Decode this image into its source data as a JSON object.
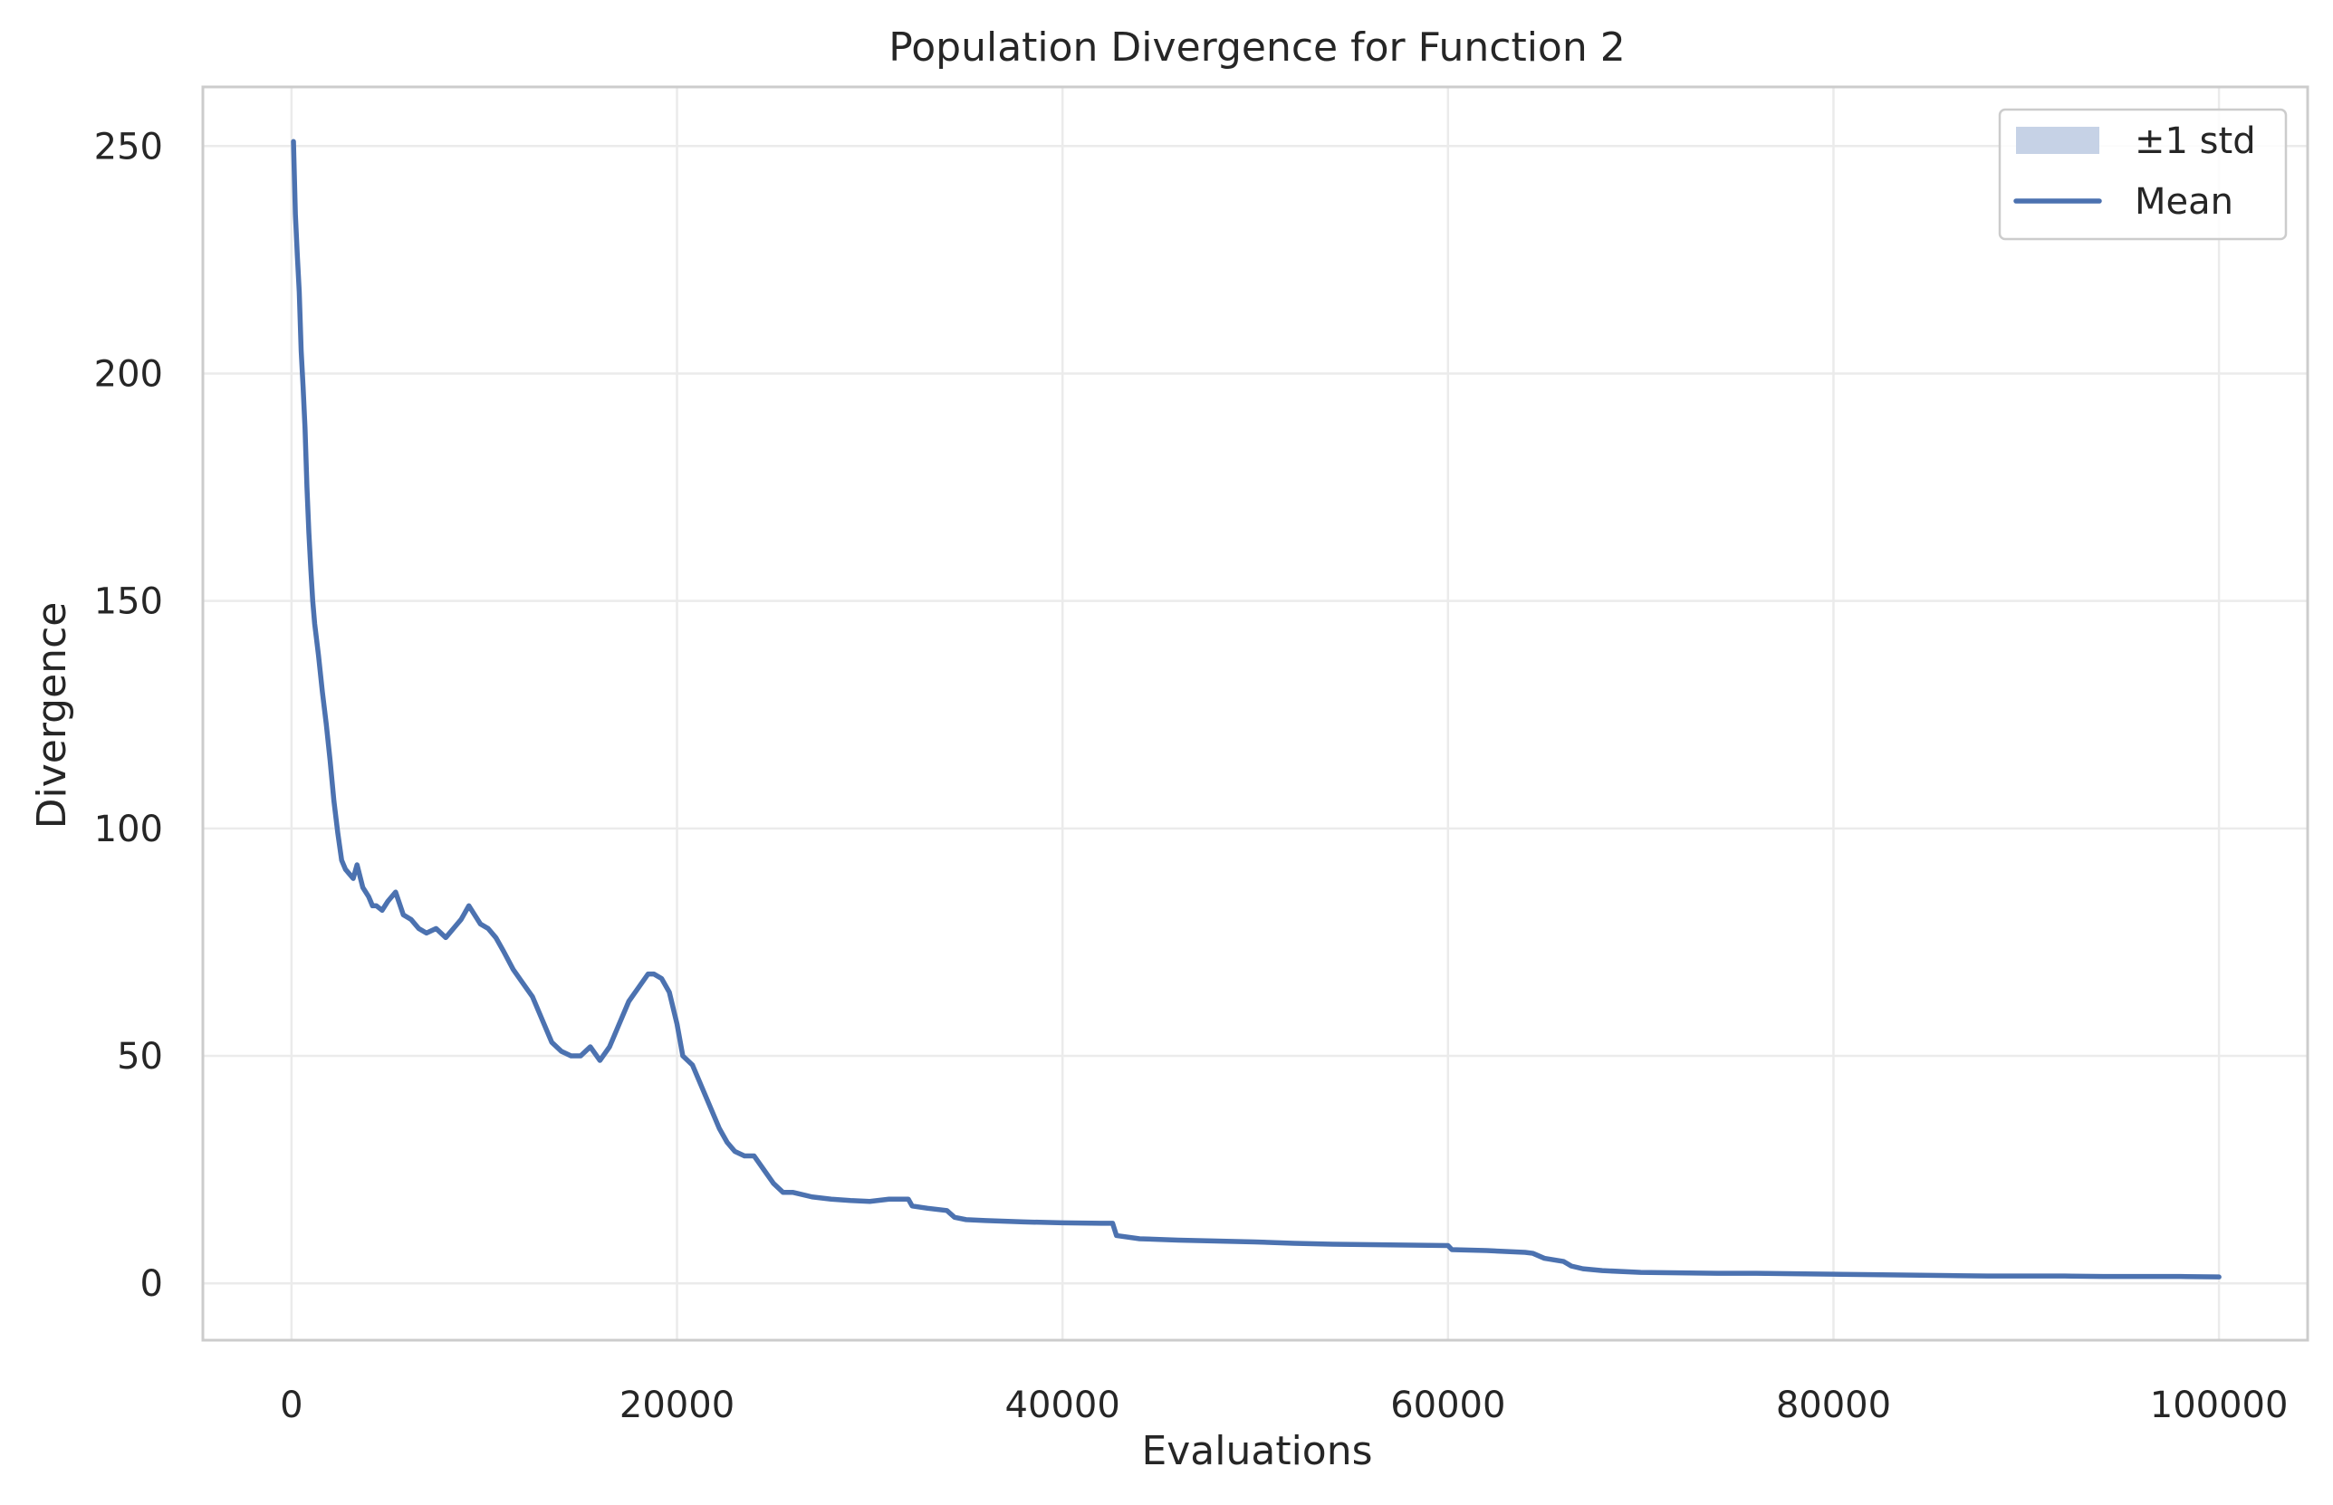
{
  "chart_data": {
    "type": "line",
    "title": "Population Divergence for Function 2",
    "xlabel": "Evaluations",
    "ylabel": "Divergence",
    "xlim": [
      -4600,
      104600
    ],
    "ylim": [
      -12.5,
      263
    ],
    "xticks": [
      0,
      20000,
      40000,
      60000,
      80000,
      100000
    ],
    "xtick_labels": [
      "0",
      "20000",
      "40000",
      "60000",
      "80000",
      "100000"
    ],
    "yticks": [
      0,
      50,
      100,
      150,
      200,
      250
    ],
    "ytick_labels": [
      "0",
      "50",
      "100",
      "150",
      "200",
      "250"
    ],
    "grid": true,
    "legend_position": "top-right",
    "legend": [
      {
        "label": "±1 std",
        "kind": "band"
      },
      {
        "label": "Mean",
        "kind": "line"
      }
    ],
    "colors": {
      "line": "#4c72b0",
      "band": "#c6d2e6",
      "grid": "#ebebeb",
      "spine": "#cccccc",
      "text": "#262626"
    },
    "series": [
      {
        "name": "Mean",
        "x": [
          100,
          200,
          300,
          400,
          500,
          600,
          700,
          800,
          900,
          1000,
          1100,
          1200,
          1400,
          1600,
          1800,
          2000,
          2200,
          2400,
          2600,
          2800,
          3000,
          3200,
          3400,
          3700,
          4000,
          4200,
          4400,
          4700,
          5000,
          5400,
          5800,
          6200,
          6600,
          7000,
          7500,
          8000,
          8400,
          8800,
          9200,
          9500,
          9800,
          10200,
          10600,
          11000,
          11500,
          12000,
          12500,
          13000,
          13500,
          14000,
          14500,
          15000,
          15500,
          16000,
          16500,
          17000,
          17500,
          18000,
          18500,
          18800,
          19200,
          19600,
          20000,
          20300,
          20800,
          21300,
          21800,
          22200,
          22600,
          23000,
          23500,
          24000,
          24500,
          25000,
          25500,
          26000,
          27000,
          28000,
          29000,
          30000,
          31000,
          32000,
          32200,
          33000,
          34000,
          34400,
          35000,
          36000,
          38000,
          40000,
          42000,
          42600,
          42800,
          44000,
          46000,
          48000,
          50000,
          52000,
          54000,
          56000,
          58000,
          60000,
          60200,
          62000,
          64000,
          64400,
          65000,
          66000,
          66400,
          67000,
          68000,
          70000,
          72000,
          74000,
          76000,
          78000,
          80000,
          82000,
          84000,
          86000,
          88000,
          90000,
          92000,
          94000,
          96000,
          98000,
          100000
        ],
        "y": [
          251,
          235,
          226,
          218,
          205,
          197,
          188,
          175,
          165,
          157,
          150,
          145,
          138,
          130,
          123,
          115,
          106,
          99,
          93,
          91,
          90,
          89,
          92,
          87,
          85,
          83,
          83,
          82,
          84,
          86,
          81,
          80,
          78,
          77,
          78,
          76,
          78,
          80,
          83,
          81,
          79,
          78,
          76,
          73,
          69,
          66,
          63,
          58,
          53,
          51,
          50,
          50,
          52,
          49,
          52,
          57,
          62,
          65,
          68,
          68,
          67,
          64,
          57,
          50,
          48,
          43,
          38,
          34,
          31,
          29,
          28,
          28,
          25,
          22,
          20,
          20,
          19,
          18.5,
          18.2,
          18,
          18.5,
          18.5,
          17,
          16.5,
          16,
          14.5,
          14,
          13.8,
          13.5,
          13.3,
          13.2,
          13.2,
          10.5,
          9.8,
          9.5,
          9.3,
          9.1,
          8.8,
          8.6,
          8.5,
          8.4,
          8.3,
          7.4,
          7.2,
          6.8,
          6.6,
          5.5,
          4.8,
          3.8,
          3.2,
          2.8,
          2.4,
          2.3,
          2.2,
          2.2,
          2.1,
          2.0,
          1.9,
          1.8,
          1.7,
          1.6,
          1.6,
          1.6,
          1.5,
          1.5,
          1.5,
          1.4
        ]
      }
    ]
  }
}
